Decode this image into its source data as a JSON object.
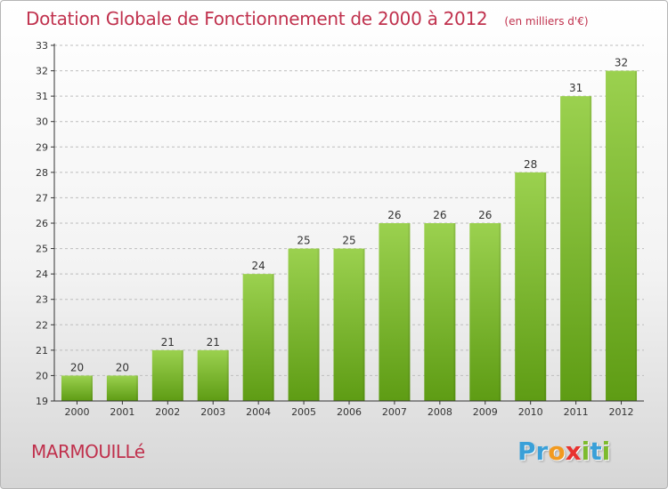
{
  "header": {
    "title": "Dotation Globale de Fonctionnement de 2000 à 2012",
    "unit": "(en milliers d'€)"
  },
  "footer": {
    "commune": "MARMOUILLé",
    "logo_letters": [
      {
        "char": "P",
        "color": "#3aa0d8"
      },
      {
        "char": "r",
        "color": "#3aa0d8"
      },
      {
        "char": "o",
        "color": "#f29a1f"
      },
      {
        "char": "x",
        "color": "#e8322f"
      },
      {
        "char": "i",
        "color": "#7dbb2e"
      },
      {
        "char": "t",
        "color": "#3aa0d8"
      },
      {
        "char": "i",
        "color": "#7dbb2e"
      }
    ]
  },
  "colors": {
    "title": "#c0314d",
    "bar_top": "#9bd14f",
    "bar_bottom": "#5e9c14",
    "axis": "#333333",
    "grid": "#bdbdbd"
  },
  "chart_data": {
    "type": "bar",
    "title": "Dotation Globale de Fonctionnement de 2000 à 2012",
    "subtitle": "(en milliers d'€)",
    "xlabel": "",
    "ylabel": "",
    "categories": [
      "2000",
      "2001",
      "2002",
      "2003",
      "2004",
      "2005",
      "2006",
      "2007",
      "2008",
      "2009",
      "2010",
      "2011",
      "2012"
    ],
    "values": [
      20,
      20,
      21,
      21,
      24,
      25,
      25,
      26,
      26,
      26,
      28,
      31,
      32
    ],
    "ylim": [
      19,
      33
    ],
    "yticks": [
      19,
      20,
      21,
      22,
      23,
      24,
      25,
      26,
      27,
      28,
      29,
      30,
      31,
      32,
      33
    ],
    "grid": "horizontal dashed",
    "data_labels": true,
    "legend": "none"
  }
}
